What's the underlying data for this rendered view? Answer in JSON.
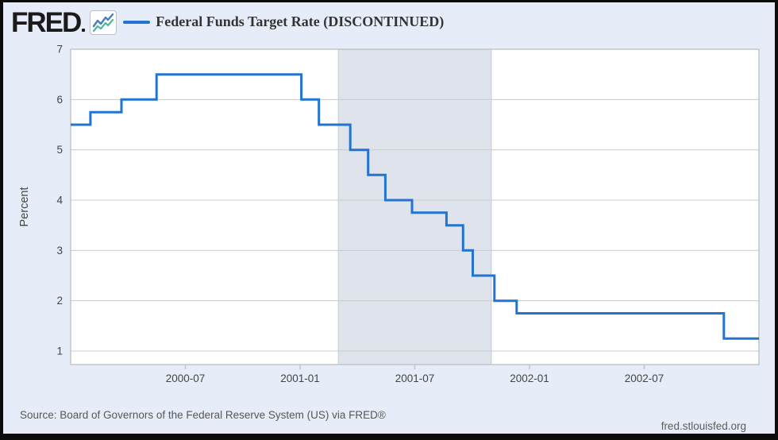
{
  "header": {
    "logo_text": "FRED",
    "legend": {
      "series_label": "Federal Funds Target Rate (DISCONTINUED)",
      "swatch_color": "#2273d2"
    }
  },
  "footer": {
    "source_text": "Source: Board of Governors of the Federal Reserve System (US) via FRED®",
    "site_text": "fred.stlouisfed.org"
  },
  "colors": {
    "page_background": "#e7edf8",
    "plot_background": "#ffffff",
    "recession_band": "#dfe3ec",
    "recession_band_border": "#c6cad3",
    "gridline": "#cbcbcb",
    "plot_border": "#b9b9b9",
    "tick_mark": "#b9c4d6",
    "axis_text": "#444444",
    "line": "#2273d2"
  },
  "chart_data": {
    "type": "line",
    "step": true,
    "title": "Federal Funds Target Rate (DISCONTINUED)",
    "xlabel": "",
    "ylabel": "Percent",
    "legend_position": "top-left",
    "grid": "horizontal",
    "ylim": [
      0.73,
      7
    ],
    "xlim": [
      "2000-01-01",
      "2002-12-31"
    ],
    "y_ticks": [
      1,
      2,
      3,
      4,
      5,
      6,
      7
    ],
    "x_ticks": [
      {
        "date": "2000-07-01",
        "label": "2000-07"
      },
      {
        "date": "2001-01-01",
        "label": "2001-01"
      },
      {
        "date": "2001-07-01",
        "label": "2001-07"
      },
      {
        "date": "2002-01-01",
        "label": "2002-01"
      },
      {
        "date": "2002-07-01",
        "label": "2002-07"
      }
    ],
    "recession_band": {
      "from": "2001-03-01",
      "to": "2001-11-01"
    },
    "series": [
      {
        "name": "Federal Funds Target Rate (DISCONTINUED)",
        "color": "#2273d2",
        "units": "Percent",
        "points": [
          {
            "date": "2000-01-01",
            "value": 5.5
          },
          {
            "date": "2000-02-02",
            "value": 5.75
          },
          {
            "date": "2000-03-21",
            "value": 6.0
          },
          {
            "date": "2000-05-16",
            "value": 6.5
          },
          {
            "date": "2001-01-03",
            "value": 6.0
          },
          {
            "date": "2001-01-31",
            "value": 5.5
          },
          {
            "date": "2001-03-20",
            "value": 5.0
          },
          {
            "date": "2001-04-18",
            "value": 4.5
          },
          {
            "date": "2001-05-15",
            "value": 4.0
          },
          {
            "date": "2001-06-27",
            "value": 3.75
          },
          {
            "date": "2001-08-21",
            "value": 3.5
          },
          {
            "date": "2001-09-17",
            "value": 3.0
          },
          {
            "date": "2001-10-02",
            "value": 2.5
          },
          {
            "date": "2001-11-06",
            "value": 2.0
          },
          {
            "date": "2001-12-11",
            "value": 1.75
          },
          {
            "date": "2002-11-06",
            "value": 1.25
          },
          {
            "date": "2002-12-31",
            "value": 1.25
          }
        ]
      }
    ]
  }
}
